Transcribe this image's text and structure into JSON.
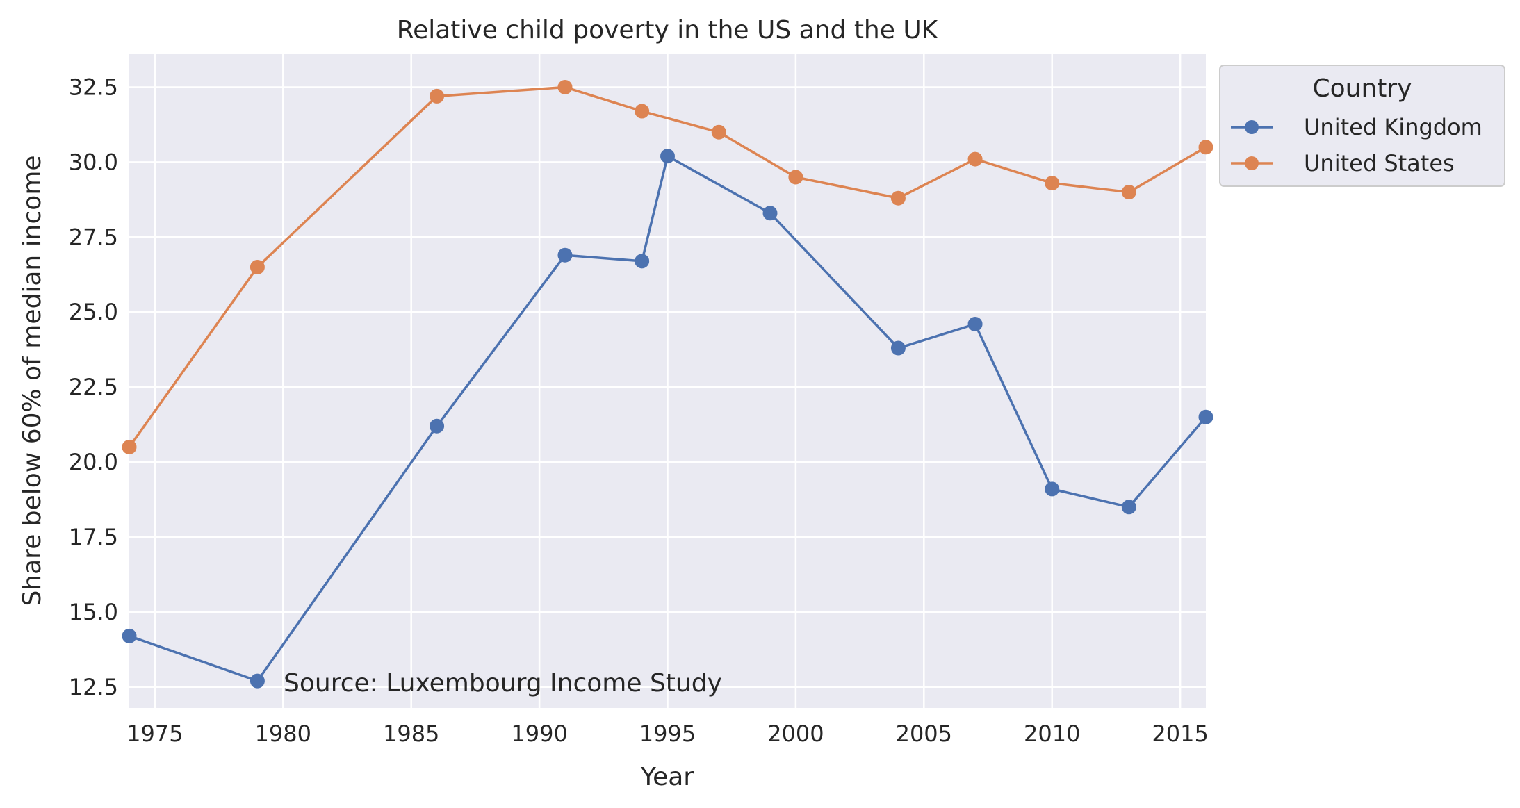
{
  "chart_data": {
    "type": "line",
    "title": "Relative child poverty in the US and the UK",
    "xlabel": "Year",
    "ylabel": "Share below 60% of median income",
    "xlim": [
      1974,
      2016
    ],
    "ylim": [
      11.8,
      33.6
    ],
    "xticks": [
      1975,
      1980,
      1985,
      1990,
      1995,
      2000,
      2005,
      2010,
      2015
    ],
    "yticks": [
      12.5,
      15.0,
      17.5,
      20.0,
      22.5,
      25.0,
      27.5,
      30.0,
      32.5
    ],
    "ytick_labels": [
      "12.5",
      "15.0",
      "17.5",
      "20.0",
      "22.5",
      "25.0",
      "27.5",
      "30.0",
      "32.5"
    ],
    "grid": true,
    "legend": {
      "title": "Country",
      "placement": "outside-top-right"
    },
    "annotation": "Source: Luxembourg Income Study",
    "series": [
      {
        "name": "United Kingdom",
        "color": "#4c72b0",
        "x": [
          1974,
          1979,
          1986,
          1991,
          1994,
          1995,
          1999,
          2004,
          2007,
          2010,
          2013,
          2016
        ],
        "y": [
          14.2,
          12.7,
          21.2,
          26.9,
          26.7,
          30.2,
          28.3,
          23.8,
          24.6,
          19.1,
          18.5,
          21.5
        ]
      },
      {
        "name": "United States",
        "color": "#dd8452",
        "x": [
          1974,
          1979,
          1986,
          1991,
          1994,
          1997,
          2000,
          2004,
          2007,
          2010,
          2013,
          2016
        ],
        "y": [
          20.5,
          26.5,
          32.2,
          32.5,
          31.7,
          31.0,
          29.5,
          28.8,
          30.1,
          29.3,
          29.0,
          30.5
        ]
      }
    ]
  }
}
